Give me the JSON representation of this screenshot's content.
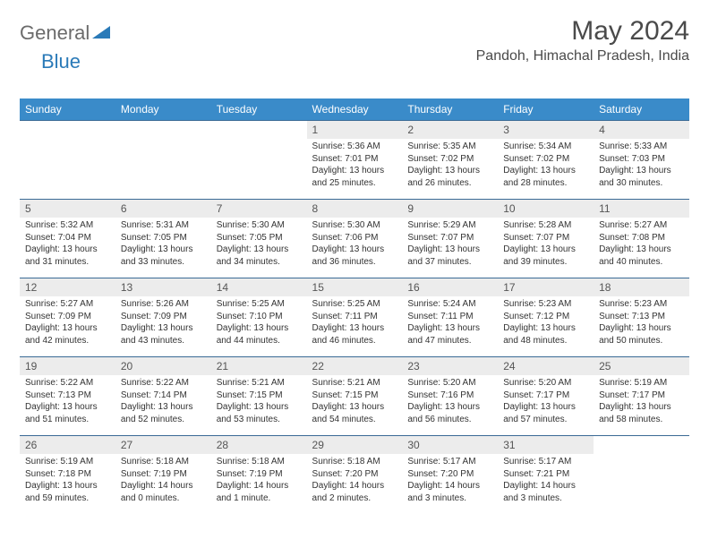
{
  "brand": {
    "general": "General",
    "blue": "Blue"
  },
  "title": "May 2024",
  "location": "Pandoh, Himachal Pradesh, India",
  "colors": {
    "header_bg": "#3a8bc9",
    "header_text": "#ffffff",
    "border": "#3a6a95",
    "daynum_bg": "#ececec",
    "text": "#333333",
    "logo_grey": "#6b6b6b",
    "logo_blue": "#2a7ab8"
  },
  "typography": {
    "title_size": 30,
    "location_size": 16,
    "header_size": 12,
    "daynum_size": 12,
    "body_size": 10
  },
  "daysOfWeek": [
    "Sunday",
    "Monday",
    "Tuesday",
    "Wednesday",
    "Thursday",
    "Friday",
    "Saturday"
  ],
  "weeks": [
    [
      {
        "n": "",
        "sr": "",
        "ss": "",
        "dl": ""
      },
      {
        "n": "",
        "sr": "",
        "ss": "",
        "dl": ""
      },
      {
        "n": "",
        "sr": "",
        "ss": "",
        "dl": ""
      },
      {
        "n": "1",
        "sr": "5:36 AM",
        "ss": "7:01 PM",
        "dl": "13 hours and 25 minutes."
      },
      {
        "n": "2",
        "sr": "5:35 AM",
        "ss": "7:02 PM",
        "dl": "13 hours and 26 minutes."
      },
      {
        "n": "3",
        "sr": "5:34 AM",
        "ss": "7:02 PM",
        "dl": "13 hours and 28 minutes."
      },
      {
        "n": "4",
        "sr": "5:33 AM",
        "ss": "7:03 PM",
        "dl": "13 hours and 30 minutes."
      }
    ],
    [
      {
        "n": "5",
        "sr": "5:32 AM",
        "ss": "7:04 PM",
        "dl": "13 hours and 31 minutes."
      },
      {
        "n": "6",
        "sr": "5:31 AM",
        "ss": "7:05 PM",
        "dl": "13 hours and 33 minutes."
      },
      {
        "n": "7",
        "sr": "5:30 AM",
        "ss": "7:05 PM",
        "dl": "13 hours and 34 minutes."
      },
      {
        "n": "8",
        "sr": "5:30 AM",
        "ss": "7:06 PM",
        "dl": "13 hours and 36 minutes."
      },
      {
        "n": "9",
        "sr": "5:29 AM",
        "ss": "7:07 PM",
        "dl": "13 hours and 37 minutes."
      },
      {
        "n": "10",
        "sr": "5:28 AM",
        "ss": "7:07 PM",
        "dl": "13 hours and 39 minutes."
      },
      {
        "n": "11",
        "sr": "5:27 AM",
        "ss": "7:08 PM",
        "dl": "13 hours and 40 minutes."
      }
    ],
    [
      {
        "n": "12",
        "sr": "5:27 AM",
        "ss": "7:09 PM",
        "dl": "13 hours and 42 minutes."
      },
      {
        "n": "13",
        "sr": "5:26 AM",
        "ss": "7:09 PM",
        "dl": "13 hours and 43 minutes."
      },
      {
        "n": "14",
        "sr": "5:25 AM",
        "ss": "7:10 PM",
        "dl": "13 hours and 44 minutes."
      },
      {
        "n": "15",
        "sr": "5:25 AM",
        "ss": "7:11 PM",
        "dl": "13 hours and 46 minutes."
      },
      {
        "n": "16",
        "sr": "5:24 AM",
        "ss": "7:11 PM",
        "dl": "13 hours and 47 minutes."
      },
      {
        "n": "17",
        "sr": "5:23 AM",
        "ss": "7:12 PM",
        "dl": "13 hours and 48 minutes."
      },
      {
        "n": "18",
        "sr": "5:23 AM",
        "ss": "7:13 PM",
        "dl": "13 hours and 50 minutes."
      }
    ],
    [
      {
        "n": "19",
        "sr": "5:22 AM",
        "ss": "7:13 PM",
        "dl": "13 hours and 51 minutes."
      },
      {
        "n": "20",
        "sr": "5:22 AM",
        "ss": "7:14 PM",
        "dl": "13 hours and 52 minutes."
      },
      {
        "n": "21",
        "sr": "5:21 AM",
        "ss": "7:15 PM",
        "dl": "13 hours and 53 minutes."
      },
      {
        "n": "22",
        "sr": "5:21 AM",
        "ss": "7:15 PM",
        "dl": "13 hours and 54 minutes."
      },
      {
        "n": "23",
        "sr": "5:20 AM",
        "ss": "7:16 PM",
        "dl": "13 hours and 56 minutes."
      },
      {
        "n": "24",
        "sr": "5:20 AM",
        "ss": "7:17 PM",
        "dl": "13 hours and 57 minutes."
      },
      {
        "n": "25",
        "sr": "5:19 AM",
        "ss": "7:17 PM",
        "dl": "13 hours and 58 minutes."
      }
    ],
    [
      {
        "n": "26",
        "sr": "5:19 AM",
        "ss": "7:18 PM",
        "dl": "13 hours and 59 minutes."
      },
      {
        "n": "27",
        "sr": "5:18 AM",
        "ss": "7:19 PM",
        "dl": "14 hours and 0 minutes."
      },
      {
        "n": "28",
        "sr": "5:18 AM",
        "ss": "7:19 PM",
        "dl": "14 hours and 1 minute."
      },
      {
        "n": "29",
        "sr": "5:18 AM",
        "ss": "7:20 PM",
        "dl": "14 hours and 2 minutes."
      },
      {
        "n": "30",
        "sr": "5:17 AM",
        "ss": "7:20 PM",
        "dl": "14 hours and 3 minutes."
      },
      {
        "n": "31",
        "sr": "5:17 AM",
        "ss": "7:21 PM",
        "dl": "14 hours and 3 minutes."
      },
      {
        "n": "",
        "sr": "",
        "ss": "",
        "dl": ""
      }
    ]
  ],
  "labels": {
    "sunrise": "Sunrise:",
    "sunset": "Sunset:",
    "daylight": "Daylight:"
  }
}
